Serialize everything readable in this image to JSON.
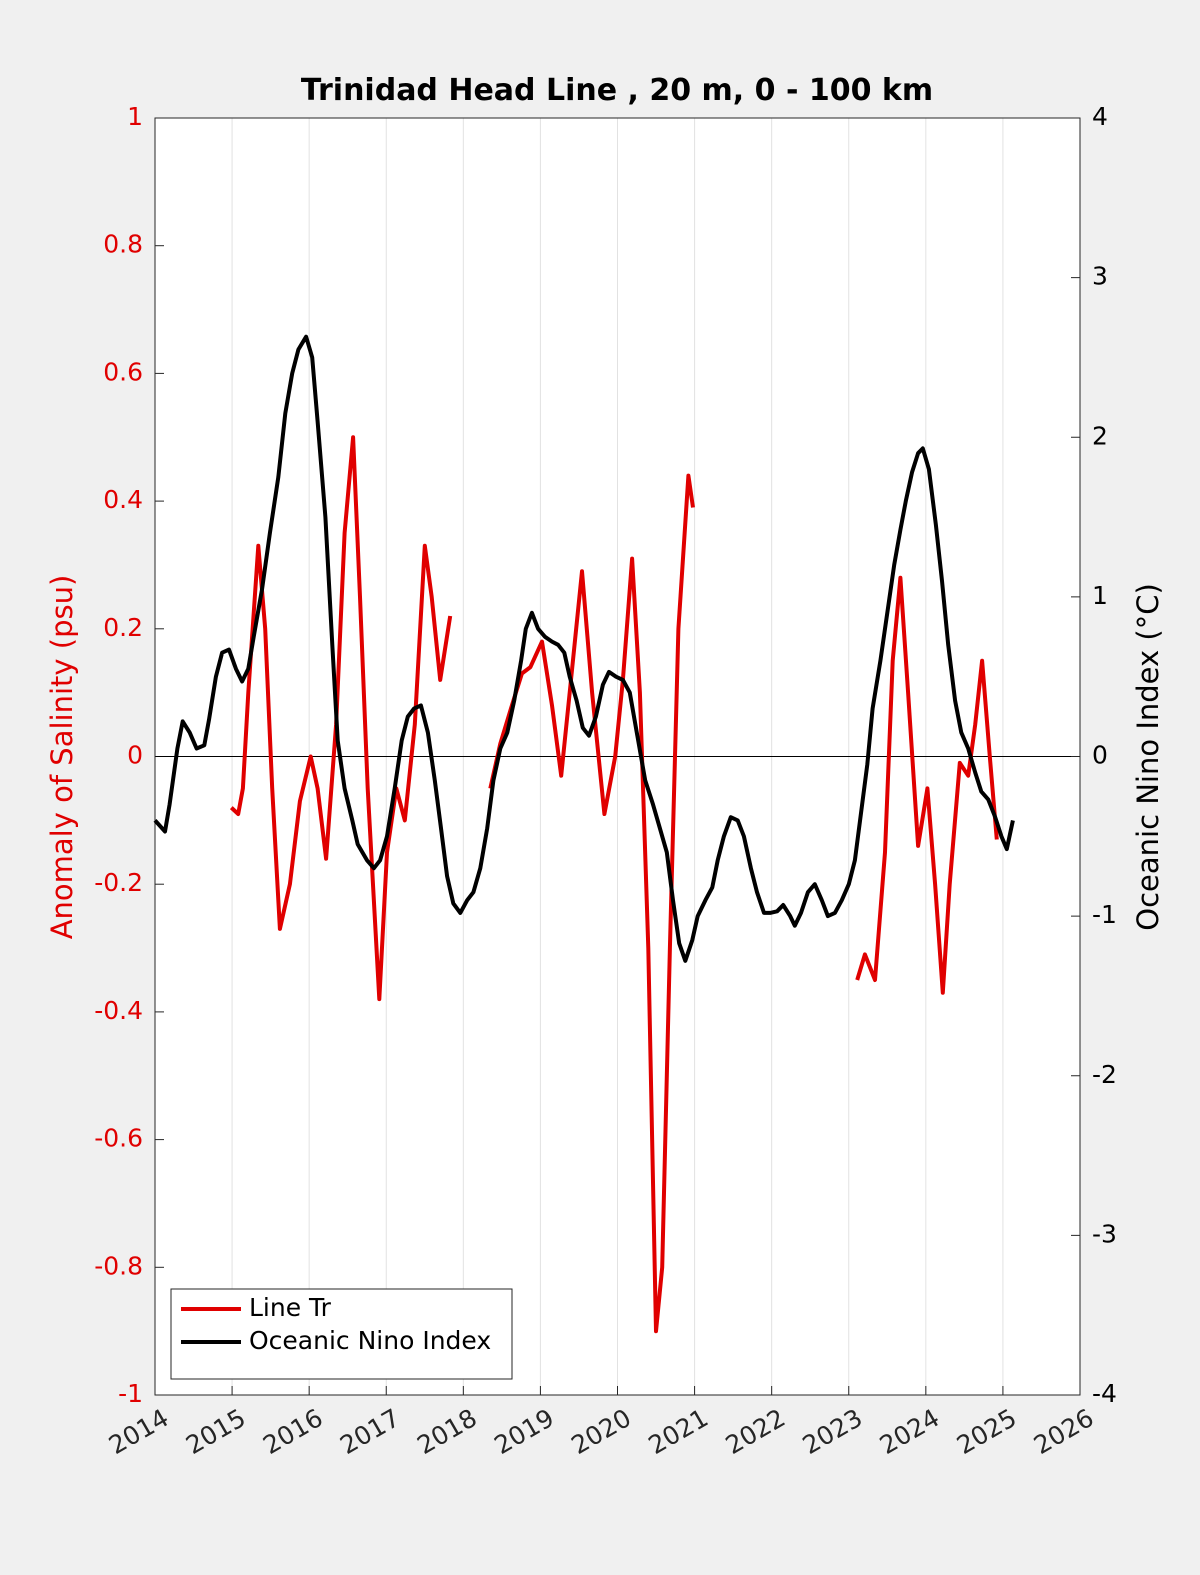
{
  "chart_data": {
    "type": "line",
    "title": "Trinidad Head Line , 20 m, 0 - 100 km",
    "ylabel": "Anomaly of Salinity (psu)",
    "y2label": "Oceanic Nino Index (°C)",
    "xlim": [
      2014,
      2026
    ],
    "xticks": [
      2014,
      2015,
      2016,
      2017,
      2018,
      2019,
      2020,
      2021,
      2022,
      2023,
      2024,
      2025,
      2026
    ],
    "ylim": [
      -1,
      1
    ],
    "yticks": [
      1,
      0.8,
      0.6,
      0.4,
      0.2,
      0,
      -0.2,
      -0.4,
      -0.6,
      -0.8,
      -1
    ],
    "y2lim": [
      -4,
      4
    ],
    "y2ticks": [
      4,
      3,
      2,
      1,
      0,
      -1,
      -2,
      -3,
      -4
    ],
    "grid": true,
    "legend": "lower left",
    "ylabel_color": "#e00000",
    "series": [
      {
        "name": "Line Tr",
        "color": "#e00000",
        "axis": "y",
        "x": [
          2014.99,
          2015.08,
          2015.14,
          2015.21,
          2015.34,
          2015.43,
          2015.52,
          2015.62,
          2015.75,
          2015.88,
          2016.02,
          2016.11,
          2016.22,
          2016.35,
          2016.46,
          2016.57,
          2016.66,
          2016.76,
          2016.91,
          2017.01,
          2017.13,
          2017.24,
          2017.37,
          2017.5,
          2017.59,
          2017.7,
          2017.83,
          2018.1,
          2018.35,
          2018.48,
          2018.63,
          2018.76,
          2018.87,
          2019.02,
          2019.15,
          2019.27,
          2019.38,
          2019.54,
          2019.67,
          2019.83,
          2019.97,
          2020.07,
          2020.19,
          2020.29,
          2020.4,
          2020.5,
          2020.58,
          2020.68,
          2020.79,
          2020.92,
          2020.98,
          2022.0,
          2023.11,
          2023.21,
          2023.34,
          2023.47,
          2023.57,
          2023.67,
          2023.77,
          2023.9,
          2024.02,
          2024.12,
          2024.22,
          2024.31,
          2024.44,
          2024.55,
          2024.64,
          2024.73,
          2024.83,
          2024.92
        ],
        "values": [
          -0.08,
          -0.09,
          -0.05,
          0.1,
          0.33,
          0.2,
          -0.05,
          -0.27,
          -0.2,
          -0.07,
          0,
          -0.05,
          -0.16,
          0.05,
          0.35,
          0.5,
          0.25,
          -0.05,
          -0.38,
          -0.15,
          -0.05,
          -0.1,
          0.05,
          0.33,
          0.25,
          0.12,
          0.22,
          null,
          -0.05,
          0.02,
          0.08,
          0.13,
          0.14,
          0.18,
          0.08,
          -0.03,
          0.1,
          0.29,
          0.1,
          -0.09,
          0,
          0.12,
          0.31,
          0.1,
          -0.3,
          -0.9,
          -0.8,
          -0.3,
          0.2,
          0.44,
          0.39,
          null,
          -0.35,
          -0.31,
          -0.35,
          -0.15,
          0.15,
          0.28,
          0.1,
          -0.14,
          -0.05,
          -0.2,
          -0.37,
          -0.2,
          -0.01,
          -0.03,
          0.05,
          0.15,
          0,
          -0.13
        ]
      },
      {
        "name": "Oceanic Nino Index",
        "color": "#000000",
        "axis": "y2",
        "x": [
          2014.0,
          2014.13,
          2014.19,
          2014.29,
          2014.36,
          2014.45,
          2014.54,
          2014.64,
          2014.7,
          2014.79,
          2014.87,
          2014.96,
          2015.05,
          2015.13,
          2015.21,
          2015.28,
          2015.39,
          2015.49,
          2015.6,
          2015.69,
          2015.78,
          2015.86,
          2015.96,
          2016.04,
          2016.11,
          2016.21,
          2016.3,
          2016.37,
          2016.46,
          2016.56,
          2016.63,
          2016.75,
          2016.84,
          2016.92,
          2017.01,
          2017.11,
          2017.2,
          2017.28,
          2017.36,
          2017.45,
          2017.54,
          2017.63,
          2017.71,
          2017.79,
          2017.87,
          2017.96,
          2018.05,
          2018.13,
          2018.22,
          2018.31,
          2018.39,
          2018.48,
          2018.57,
          2018.66,
          2018.75,
          2018.81,
          2018.89,
          2018.97,
          2019.06,
          2019.15,
          2019.23,
          2019.31,
          2019.38,
          2019.47,
          2019.55,
          2019.63,
          2019.72,
          2019.81,
          2019.89,
          2019.98,
          2020.07,
          2020.16,
          2020.25,
          2020.36,
          2020.46,
          2020.55,
          2020.64,
          2020.72,
          2020.8,
          2020.88,
          2020.97,
          2021.04,
          2021.14,
          2021.23,
          2021.3,
          2021.38,
          2021.47,
          2021.56,
          2021.64,
          2021.73,
          2021.81,
          2021.9,
          2021.98,
          2022.07,
          2022.15,
          2022.24,
          2022.3,
          2022.38,
          2022.47,
          2022.56,
          2022.65,
          2022.73,
          2022.82,
          2022.91,
          2023.0,
          2023.08,
          2023.16,
          2023.24,
          2023.31,
          2023.41,
          2023.5,
          2023.59,
          2023.67,
          2023.74,
          2023.82,
          2023.9,
          2023.96,
          2024.04,
          2024.13,
          2024.21,
          2024.29,
          2024.38,
          2024.46,
          2024.55,
          2024.64,
          2024.72,
          2024.81,
          2024.9,
          2024.98,
          2025.05,
          2025.13
        ],
        "values": [
          -0.4,
          -0.47,
          -0.3,
          0.05,
          0.22,
          0.15,
          0.05,
          0.07,
          0.23,
          0.5,
          0.65,
          0.67,
          0.55,
          0.47,
          0.55,
          0.75,
          1.05,
          1.4,
          1.75,
          2.15,
          2.4,
          2.55,
          2.63,
          2.5,
          2.1,
          1.5,
          0.7,
          0.1,
          -0.2,
          -0.4,
          -0.55,
          -0.65,
          -0.7,
          -0.65,
          -0.5,
          -0.2,
          0.1,
          0.25,
          0.3,
          0.32,
          0.15,
          -0.15,
          -0.45,
          -0.75,
          -0.92,
          -0.98,
          -0.9,
          -0.85,
          -0.7,
          -0.45,
          -0.15,
          0.05,
          0.15,
          0.35,
          0.6,
          0.8,
          0.9,
          0.8,
          0.75,
          0.72,
          0.7,
          0.65,
          0.5,
          0.35,
          0.18,
          0.13,
          0.25,
          0.45,
          0.53,
          0.5,
          0.48,
          0.4,
          0.15,
          -0.15,
          -0.3,
          -0.45,
          -0.6,
          -0.9,
          -1.17,
          -1.28,
          -1.15,
          -1.0,
          -0.9,
          -0.82,
          -0.65,
          -0.5,
          -0.38,
          -0.4,
          -0.5,
          -0.7,
          -0.85,
          -0.98,
          -0.98,
          -0.97,
          -0.93,
          -1.0,
          -1.06,
          -0.98,
          -0.85,
          -0.8,
          -0.9,
          -1.0,
          -0.98,
          -0.9,
          -0.8,
          -0.65,
          -0.35,
          -0.05,
          0.3,
          0.6,
          0.9,
          1.2,
          1.42,
          1.6,
          1.78,
          1.9,
          1.93,
          1.8,
          1.45,
          1.1,
          0.7,
          0.35,
          0.15,
          0.05,
          -0.1,
          -0.22,
          -0.27,
          -0.38,
          -0.5,
          -0.58,
          -0.4
        ]
      }
    ]
  }
}
